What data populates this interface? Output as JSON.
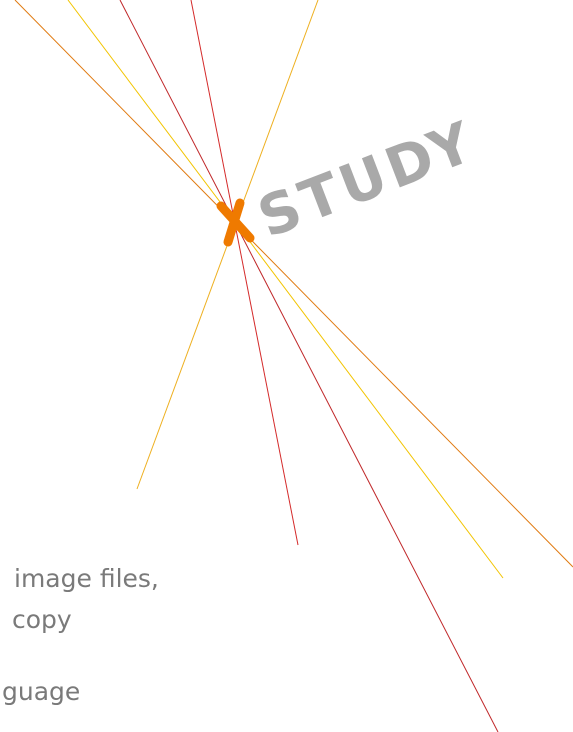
{
  "logo": {
    "text": "STUDY"
  },
  "body": {
    "lines": [
      "image files,",
      "copy",
      "guage"
    ]
  }
}
